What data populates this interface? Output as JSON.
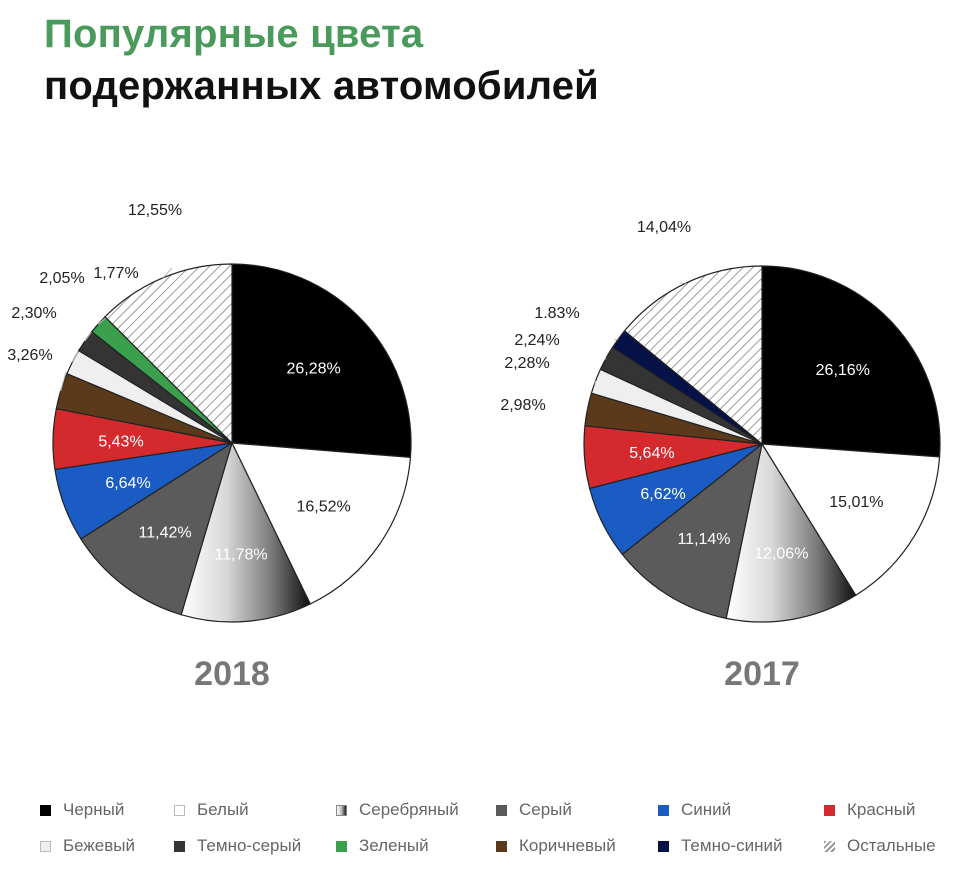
{
  "title_line1": "Популярные цвета",
  "title_line2": "подержанных автомобилей",
  "legend": [
    {
      "name": "Черный",
      "fill": "#000000"
    },
    {
      "name": "Белый",
      "fill": "#ffffff"
    },
    {
      "name": "Серебряный",
      "fill": "silver"
    },
    {
      "name": "Серый",
      "fill": "#5b5b5b"
    },
    {
      "name": "Синий",
      "fill": "#1a5cc4"
    },
    {
      "name": "Красный",
      "fill": "#d42a2e"
    },
    {
      "name": "Бежевый",
      "fill": "#efefef"
    },
    {
      "name": "Темно-серый",
      "fill": "#343434"
    },
    {
      "name": "Зеленый",
      "fill": "#3aa04d"
    },
    {
      "name": "Коричневый",
      "fill": "#5a3a1a"
    },
    {
      "name": "Темно-синий",
      "fill": "#061247"
    },
    {
      "name": "Остальные",
      "fill": "hatch"
    }
  ],
  "chart_data": [
    {
      "type": "pie",
      "title": "2018",
      "slices": [
        {
          "label": "Черный",
          "value": 26.28,
          "text": "26,28%"
        },
        {
          "label": "Белый",
          "value": 16.52,
          "text": "16,52%"
        },
        {
          "label": "Серебряный",
          "value": 11.78,
          "text": "11,78%"
        },
        {
          "label": "Серый",
          "value": 11.42,
          "text": "11,42%"
        },
        {
          "label": "Синий",
          "value": 6.64,
          "text": "6,64%"
        },
        {
          "label": "Красный",
          "value": 5.43,
          "text": "5,43%"
        },
        {
          "label": "Коричневый",
          "value": 3.26,
          "text": "3,26%"
        },
        {
          "label": "Бежевый",
          "value": 2.3,
          "text": "2,30%"
        },
        {
          "label": "Темно-серый",
          "value": 2.05,
          "text": "2,05%"
        },
        {
          "label": "Зеленый",
          "value": 1.77,
          "text": "1,77%"
        },
        {
          "label": "Остальные",
          "value": 12.55,
          "text": "12,55%"
        }
      ]
    },
    {
      "type": "pie",
      "title": "2017",
      "slices": [
        {
          "label": "Черный",
          "value": 26.16,
          "text": "26,16%"
        },
        {
          "label": "Белый",
          "value": 15.01,
          "text": "15,01%"
        },
        {
          "label": "Серебряный",
          "value": 12.06,
          "text": "12,06%"
        },
        {
          "label": "Серый",
          "value": 11.14,
          "text": "11,14%"
        },
        {
          "label": "Синий",
          "value": 6.62,
          "text": "6,62%"
        },
        {
          "label": "Красный",
          "value": 5.64,
          "text": "5,64%"
        },
        {
          "label": "Коричневый",
          "value": 2.98,
          "text": "2,98%"
        },
        {
          "label": "Бежевый",
          "value": 2.28,
          "text": "2,28%"
        },
        {
          "label": "Темно-серый",
          "value": 2.24,
          "text": "2,24%"
        },
        {
          "label": "Темно-синий",
          "value": 1.83,
          "text": "1.83%"
        },
        {
          "label": "Остальные",
          "value": 14.04,
          "text": "14,04%"
        }
      ]
    }
  ]
}
